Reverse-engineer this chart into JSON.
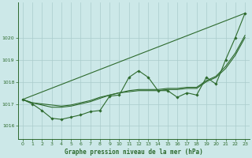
{
  "bg_color": "#cce8e8",
  "grid_color": "#aacccc",
  "line_color": "#2d6a2d",
  "title": "Graphe pression niveau de la mer (hPa)",
  "xlim": [
    -0.5,
    23.5
  ],
  "ylim": [
    1015.4,
    1021.6
  ],
  "yticks": [
    1016,
    1017,
    1018,
    1019,
    1020
  ],
  "xticks": [
    0,
    1,
    2,
    3,
    4,
    5,
    6,
    7,
    8,
    9,
    10,
    11,
    12,
    13,
    14,
    15,
    16,
    17,
    18,
    19,
    20,
    21,
    22,
    23
  ],
  "series_diagonal": {
    "x": [
      0,
      23
    ],
    "y": [
      1017.2,
      1021.1
    ]
  },
  "series_smooth1": {
    "x": [
      0,
      1,
      2,
      3,
      4,
      5,
      6,
      7,
      8,
      9,
      10,
      11,
      12,
      13,
      14,
      15,
      16,
      17,
      18,
      19,
      20,
      21,
      22,
      23
    ],
    "y": [
      1017.2,
      1017.05,
      1016.95,
      1016.85,
      1016.85,
      1016.9,
      1017.0,
      1017.1,
      1017.25,
      1017.4,
      1017.5,
      1017.6,
      1017.65,
      1017.65,
      1017.65,
      1017.7,
      1017.7,
      1017.75,
      1017.75,
      1018.05,
      1018.25,
      1018.7,
      1019.3,
      1020.1
    ]
  },
  "series_smooth2": {
    "x": [
      0,
      1,
      2,
      3,
      4,
      5,
      6,
      7,
      8,
      9,
      10,
      11,
      12,
      13,
      14,
      15,
      16,
      17,
      18,
      19,
      20,
      21,
      22,
      23
    ],
    "y": [
      1017.2,
      1017.05,
      1017.0,
      1016.95,
      1016.9,
      1016.95,
      1017.05,
      1017.15,
      1017.3,
      1017.4,
      1017.5,
      1017.55,
      1017.6,
      1017.6,
      1017.6,
      1017.65,
      1017.65,
      1017.7,
      1017.7,
      1018.0,
      1018.2,
      1018.6,
      1019.2,
      1020.0
    ]
  },
  "series_markers": {
    "x": [
      0,
      1,
      2,
      3,
      4,
      5,
      6,
      7,
      8,
      9,
      10,
      11,
      12,
      13,
      14,
      15,
      16,
      17,
      18,
      19,
      20,
      21,
      22,
      23
    ],
    "y": [
      1017.2,
      1017.0,
      1016.7,
      1016.35,
      1016.3,
      1016.4,
      1016.5,
      1016.65,
      1016.7,
      1017.35,
      1017.4,
      1018.2,
      1018.5,
      1018.2,
      1017.6,
      1017.6,
      1017.3,
      1017.5,
      1017.4,
      1018.2,
      1017.9,
      1019.0,
      1020.0,
      1021.1
    ]
  }
}
